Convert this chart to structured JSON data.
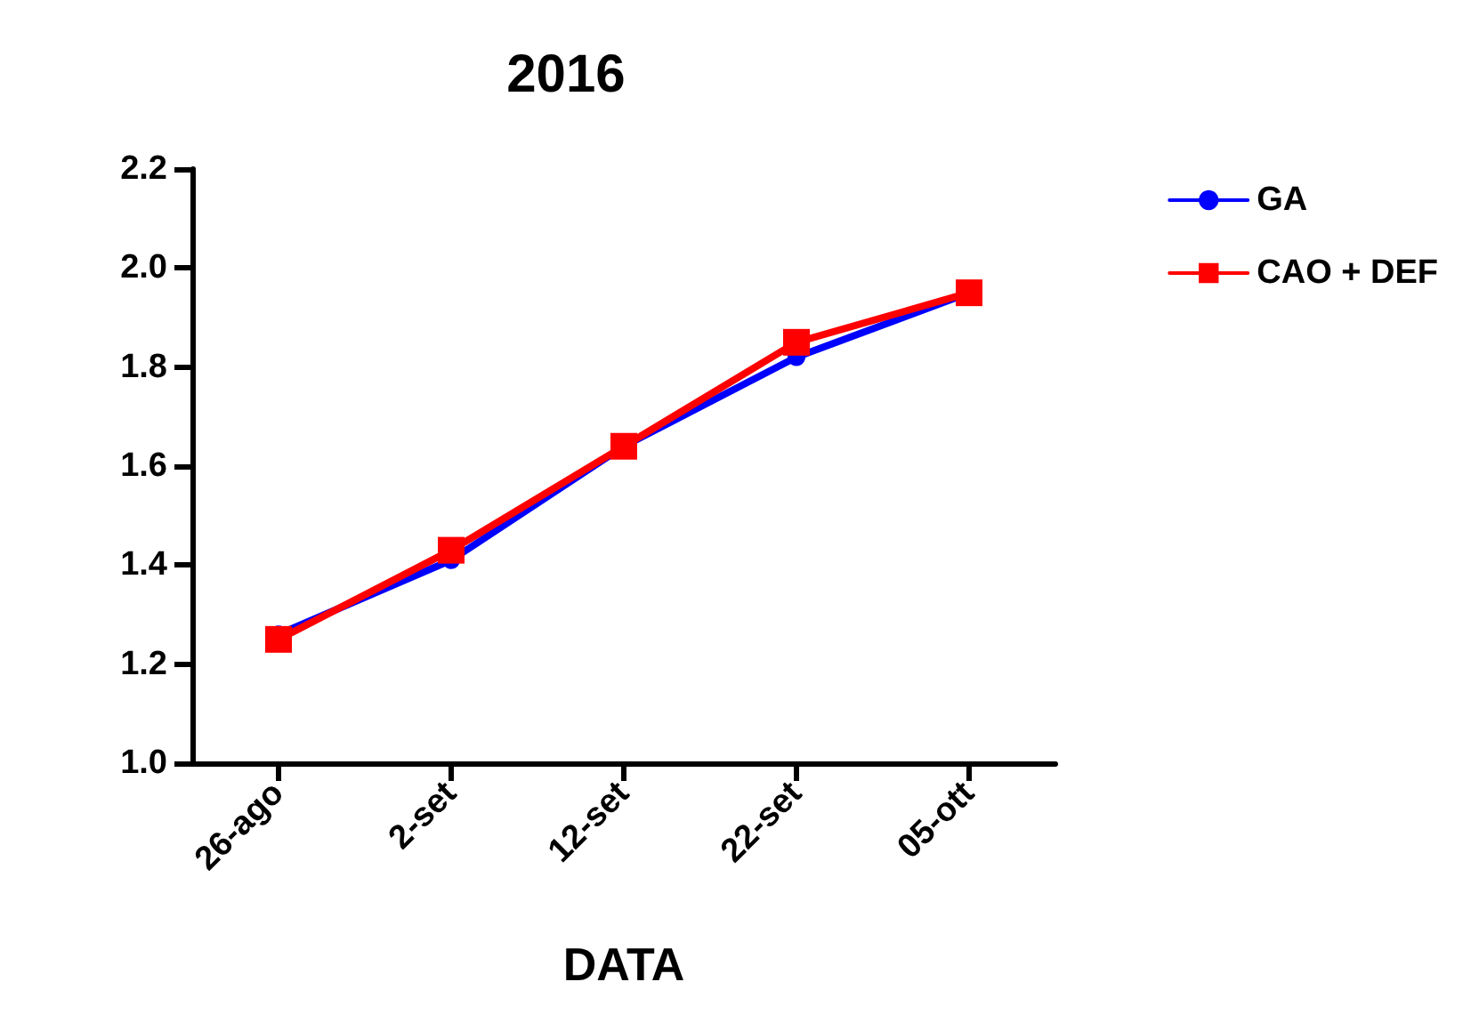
{
  "chart_data": {
    "type": "line",
    "title": "2016",
    "xlabel": "DATA",
    "categories": [
      "26-ago",
      "2-set",
      "12-set",
      "22-set",
      "05-ott"
    ],
    "series": [
      {
        "name": "GA",
        "color": "#0000ff",
        "marker": "circle",
        "values": [
          1.26,
          1.41,
          1.64,
          1.82,
          1.95
        ]
      },
      {
        "name": "CAO + DEF",
        "color": "#ff0000",
        "marker": "square",
        "values": [
          1.25,
          1.43,
          1.64,
          1.85,
          1.95
        ]
      }
    ],
    "ylim": [
      1.0,
      2.2
    ],
    "yticks": [
      {
        "value": 1,
        "label": "1.0"
      },
      1.2,
      1.4,
      1.6,
      1.8,
      {
        "value": 2,
        "label": "2.0"
      },
      2.2
    ],
    "grid": false,
    "legend": "top right",
    "line_style": "solid"
  }
}
